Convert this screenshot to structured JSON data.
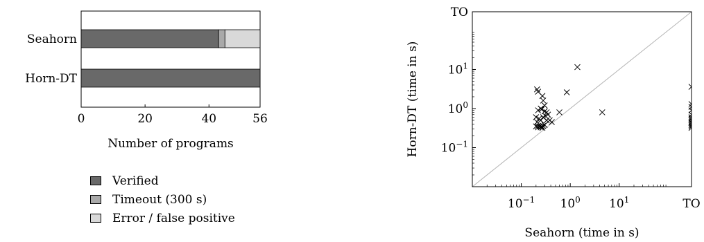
{
  "chart_data": [
    {
      "type": "bar",
      "orientation": "horizontal",
      "stacked": true,
      "categories": [
        "Seahorn",
        "Horn-DT"
      ],
      "series": [
        {
          "name": "Verified",
          "color": "#696969",
          "values": [
            43,
            56
          ]
        },
        {
          "name": "Timeout (300 s)",
          "color": "#a9a9a9",
          "values": [
            2,
            0
          ]
        },
        {
          "name": "Error / false positive",
          "color": "#d9d9d9",
          "values": [
            11,
            0
          ]
        }
      ],
      "xlabel": "Number of programs",
      "xlim": [
        0,
        56
      ],
      "xticks": [
        "0",
        "20",
        "40",
        "56"
      ],
      "legend_position": "below"
    },
    {
      "type": "scatter",
      "marker": "x",
      "xlabel": "Seahorn (time in s)",
      "ylabel": "Horn-DT (time in s)",
      "xscale": "log",
      "yscale": "log",
      "xlim": [
        0.01,
        300
      ],
      "ylim": [
        0.01,
        300
      ],
      "timeout_label": "TO",
      "timeout_value": 300,
      "xticks": [
        {
          "value": 0.1,
          "base": "10",
          "exp": "−1"
        },
        {
          "value": 1,
          "base": "10",
          "exp": "0"
        },
        {
          "value": 10,
          "base": "10",
          "exp": "1"
        },
        {
          "value": 300,
          "label": "TO"
        }
      ],
      "yticks": [
        {
          "value": 0.1,
          "base": "10",
          "exp": "−1"
        },
        {
          "value": 1,
          "base": "10",
          "exp": "0"
        },
        {
          "value": 10,
          "base": "10",
          "exp": "1"
        },
        {
          "value": 300,
          "label": "TO"
        }
      ],
      "diagonal": true,
      "points": [
        [
          0.21,
          3.1
        ],
        [
          0.22,
          2.7
        ],
        [
          0.27,
          2.1
        ],
        [
          0.28,
          1.6
        ],
        [
          0.3,
          1.2
        ],
        [
          0.22,
          0.9
        ],
        [
          0.25,
          1.0
        ],
        [
          0.26,
          0.95
        ],
        [
          0.3,
          0.85
        ],
        [
          0.33,
          0.8
        ],
        [
          0.2,
          0.6
        ],
        [
          0.23,
          0.55
        ],
        [
          0.28,
          0.6
        ],
        [
          0.31,
          0.65
        ],
        [
          0.35,
          0.7
        ],
        [
          0.21,
          0.45
        ],
        [
          0.25,
          0.5
        ],
        [
          0.33,
          0.5
        ],
        [
          0.38,
          0.5
        ],
        [
          0.42,
          0.45
        ],
        [
          0.2,
          0.35
        ],
        [
          0.22,
          0.36
        ],
        [
          0.24,
          0.35
        ],
        [
          0.26,
          0.35
        ],
        [
          0.28,
          0.36
        ],
        [
          0.3,
          0.38
        ],
        [
          0.22,
          0.33
        ],
        [
          0.25,
          0.33
        ],
        [
          0.27,
          0.32
        ],
        [
          0.6,
          0.8
        ],
        [
          0.85,
          2.6
        ],
        [
          1.4,
          11.5
        ],
        [
          4.5,
          0.8
        ],
        [
          300,
          3.6
        ],
        [
          300,
          1.3
        ],
        [
          300,
          1.1
        ],
        [
          300,
          0.9
        ],
        [
          300,
          0.7
        ],
        [
          300,
          0.6
        ],
        [
          300,
          0.55
        ],
        [
          300,
          0.5
        ],
        [
          300,
          0.45
        ],
        [
          300,
          0.42
        ],
        [
          300,
          0.38
        ],
        [
          300,
          0.35
        ],
        [
          300,
          0.32
        ]
      ]
    }
  ]
}
